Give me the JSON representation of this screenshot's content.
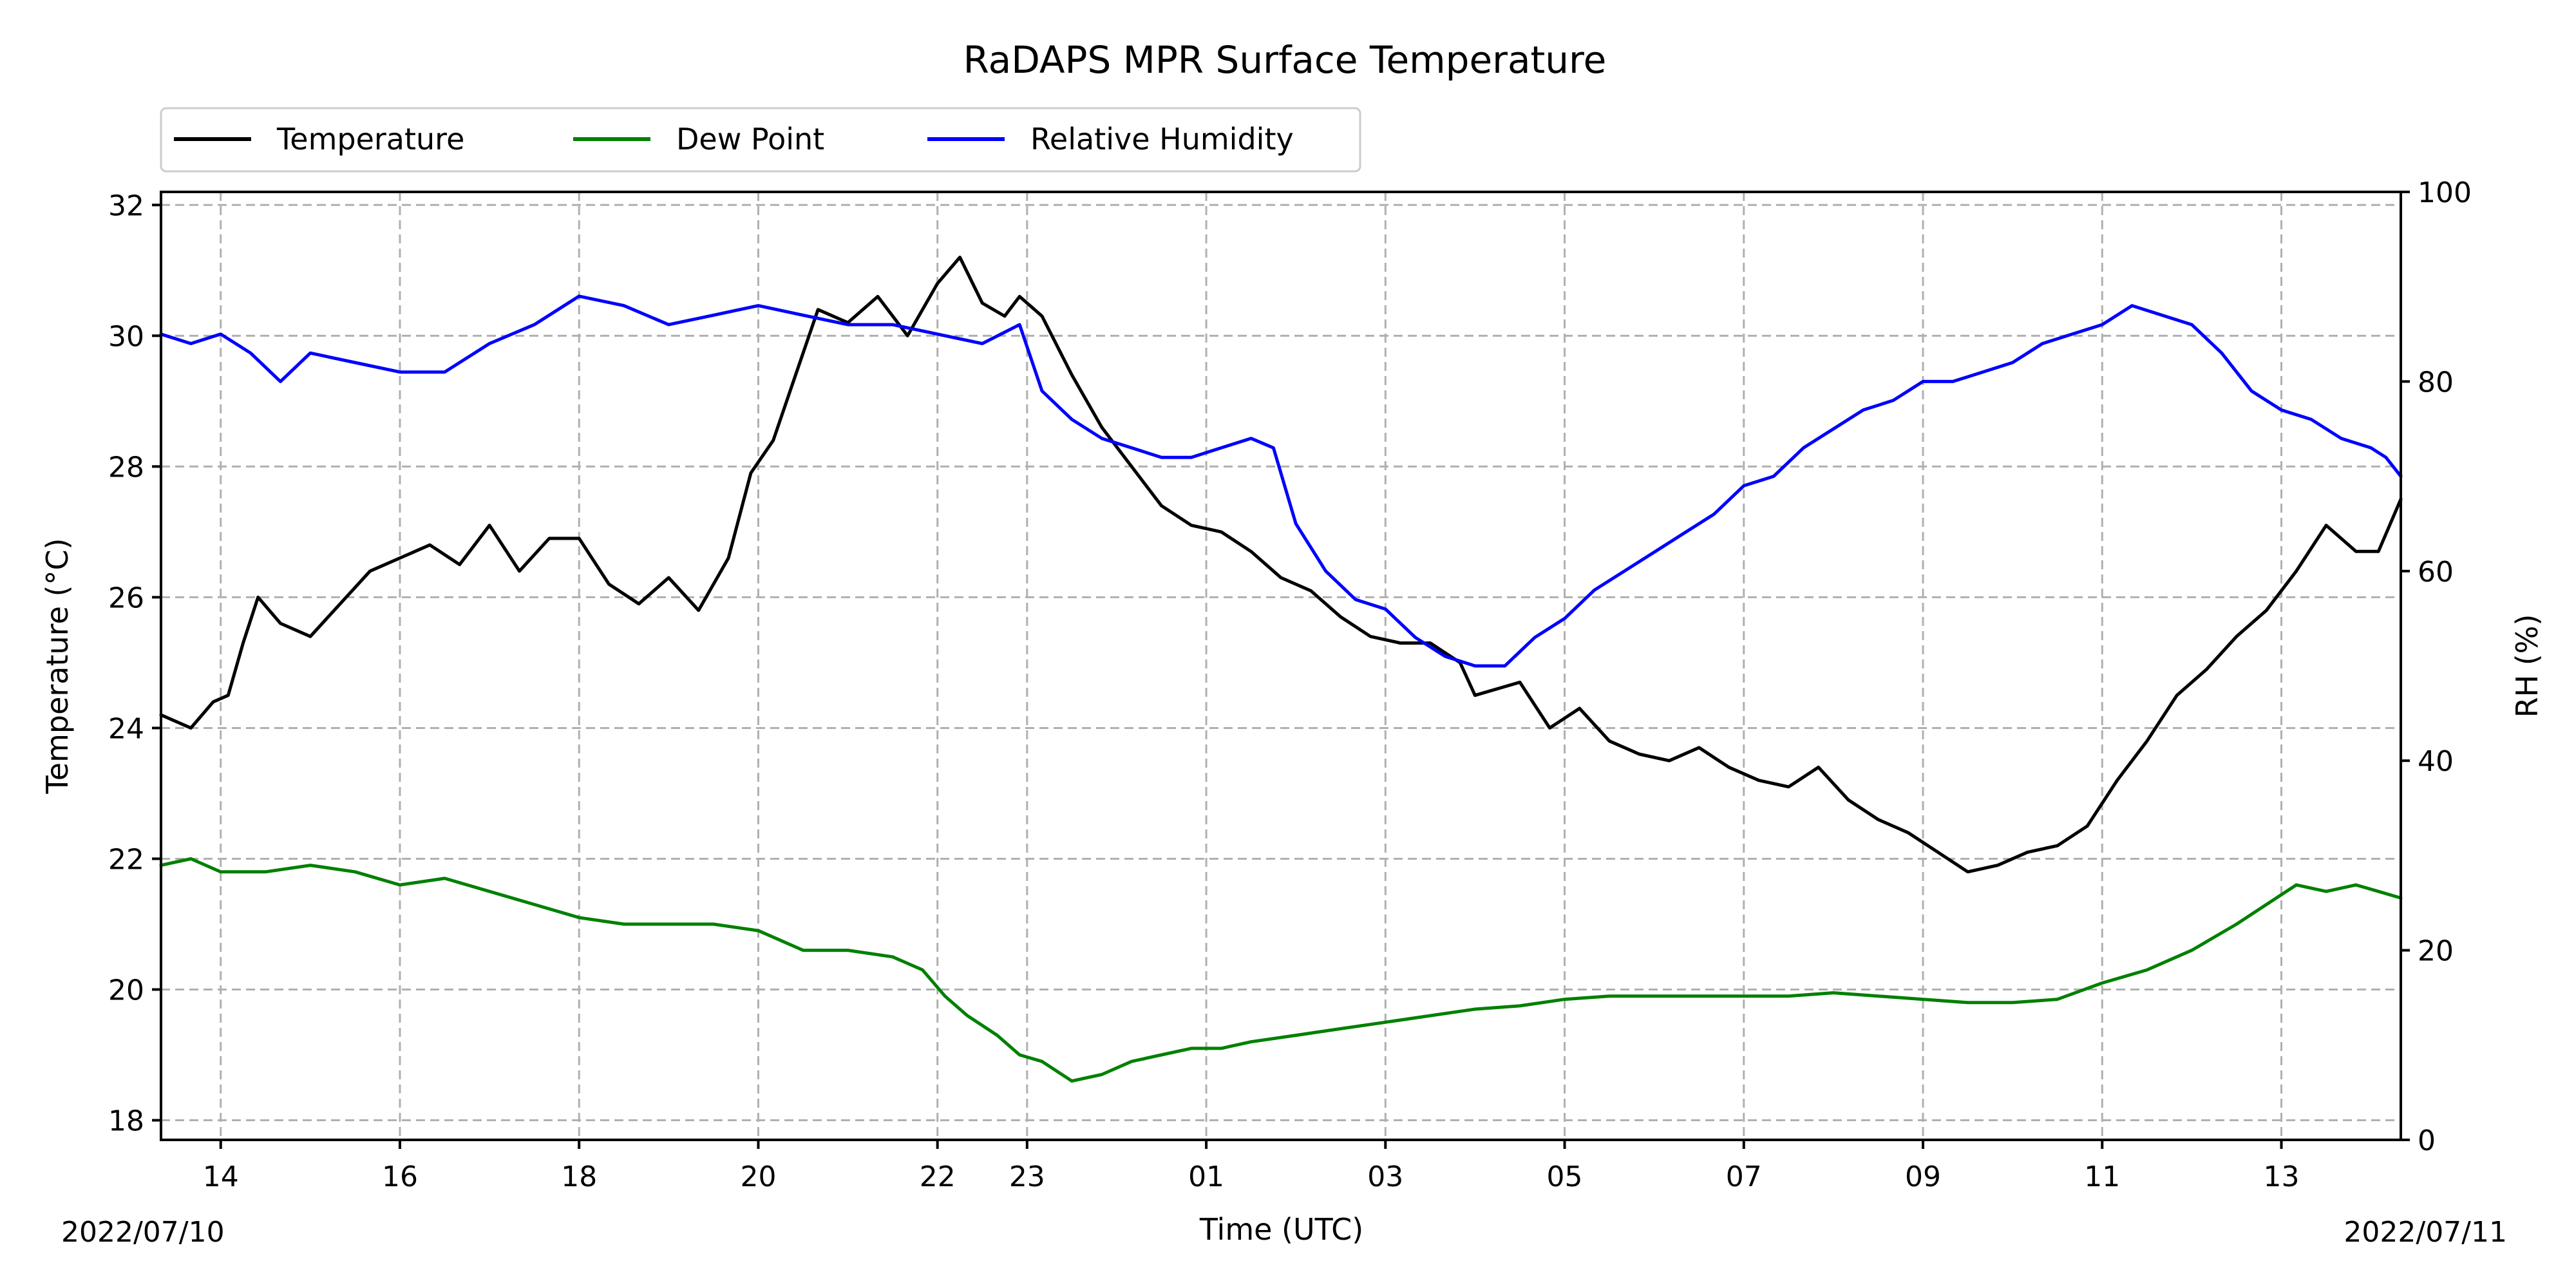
{
  "chart_data": {
    "type": "line",
    "title": "RaDAPS MPR Surface Temperature",
    "xlabel": "Time (UTC)",
    "ylabel": "Temperature ($^\\circ$C)",
    "ylabel_display": "Temperature (°C)",
    "y2label": "RH (%)",
    "date_start": "2022/07/10",
    "date_end": "2022/07/11",
    "x_range": [
      "2022-07-10T13:20",
      "2022-07-11T14:20"
    ],
    "x_ticks": [
      {
        "time": "2022-07-10T14:00",
        "label": "14"
      },
      {
        "time": "2022-07-10T16:00",
        "label": "16"
      },
      {
        "time": "2022-07-10T18:00",
        "label": "18"
      },
      {
        "time": "2022-07-10T20:00",
        "label": "20"
      },
      {
        "time": "2022-07-10T22:00",
        "label": "22"
      },
      {
        "time": "2022-07-10T23:00",
        "label": "23"
      },
      {
        "time": "2022-07-11T01:00",
        "label": "01"
      },
      {
        "time": "2022-07-11T03:00",
        "label": "03"
      },
      {
        "time": "2022-07-11T05:00",
        "label": "05"
      },
      {
        "time": "2022-07-11T07:00",
        "label": "07"
      },
      {
        "time": "2022-07-11T09:00",
        "label": "09"
      },
      {
        "time": "2022-07-11T11:00",
        "label": "11"
      },
      {
        "time": "2022-07-11T13:00",
        "label": "13"
      }
    ],
    "ylim": [
      17.7,
      32.2
    ],
    "y_ticks": [
      18,
      20,
      22,
      24,
      26,
      28,
      30,
      32
    ],
    "y2lim": [
      0,
      100
    ],
    "y2_ticks": [
      0,
      20,
      40,
      60,
      80,
      100
    ],
    "grid": true,
    "legend_position": "above-left",
    "series": [
      {
        "name": "Temperature",
        "axis": "left",
        "color": "#000000",
        "points": [
          [
            "2022-07-10T13:20",
            24.2
          ],
          [
            "2022-07-10T13:40",
            24.0
          ],
          [
            "2022-07-10T13:55",
            24.4
          ],
          [
            "2022-07-10T14:05",
            24.5
          ],
          [
            "2022-07-10T14:15",
            25.3
          ],
          [
            "2022-07-10T14:25",
            26.0
          ],
          [
            "2022-07-10T14:40",
            25.6
          ],
          [
            "2022-07-10T15:00",
            25.4
          ],
          [
            "2022-07-10T15:20",
            25.9
          ],
          [
            "2022-07-10T15:40",
            26.4
          ],
          [
            "2022-07-10T16:00",
            26.6
          ],
          [
            "2022-07-10T16:20",
            26.8
          ],
          [
            "2022-07-10T16:40",
            26.5
          ],
          [
            "2022-07-10T17:00",
            27.1
          ],
          [
            "2022-07-10T17:20",
            26.4
          ],
          [
            "2022-07-10T17:40",
            26.9
          ],
          [
            "2022-07-10T18:00",
            26.9
          ],
          [
            "2022-07-10T18:20",
            26.2
          ],
          [
            "2022-07-10T18:40",
            25.9
          ],
          [
            "2022-07-10T19:00",
            26.3
          ],
          [
            "2022-07-10T19:20",
            25.8
          ],
          [
            "2022-07-10T19:40",
            26.6
          ],
          [
            "2022-07-10T19:55",
            27.9
          ],
          [
            "2022-07-10T20:10",
            28.4
          ],
          [
            "2022-07-10T20:25",
            29.4
          ],
          [
            "2022-07-10T20:40",
            30.4
          ],
          [
            "2022-07-10T21:00",
            30.2
          ],
          [
            "2022-07-10T21:20",
            30.6
          ],
          [
            "2022-07-10T21:40",
            30.0
          ],
          [
            "2022-07-10T22:00",
            30.8
          ],
          [
            "2022-07-10T22:15",
            31.2
          ],
          [
            "2022-07-10T22:30",
            30.5
          ],
          [
            "2022-07-10T22:45",
            30.3
          ],
          [
            "2022-07-10T22:55",
            30.6
          ],
          [
            "2022-07-10T23:10",
            30.3
          ],
          [
            "2022-07-10T23:30",
            29.4
          ],
          [
            "2022-07-10T23:50",
            28.6
          ],
          [
            "2022-07-11T00:10",
            28.0
          ],
          [
            "2022-07-11T00:30",
            27.4
          ],
          [
            "2022-07-11T00:50",
            27.1
          ],
          [
            "2022-07-11T01:10",
            27.0
          ],
          [
            "2022-07-11T01:30",
            26.7
          ],
          [
            "2022-07-11T01:50",
            26.3
          ],
          [
            "2022-07-11T02:10",
            26.1
          ],
          [
            "2022-07-11T02:30",
            25.7
          ],
          [
            "2022-07-11T02:50",
            25.4
          ],
          [
            "2022-07-11T03:10",
            25.3
          ],
          [
            "2022-07-11T03:30",
            25.3
          ],
          [
            "2022-07-11T03:50",
            25.0
          ],
          [
            "2022-07-11T04:00",
            24.5
          ],
          [
            "2022-07-11T04:30",
            24.7
          ],
          [
            "2022-07-11T04:50",
            24.0
          ],
          [
            "2022-07-11T05:10",
            24.3
          ],
          [
            "2022-07-11T05:30",
            23.8
          ],
          [
            "2022-07-11T05:50",
            23.6
          ],
          [
            "2022-07-11T06:10",
            23.5
          ],
          [
            "2022-07-11T06:30",
            23.7
          ],
          [
            "2022-07-11T06:50",
            23.4
          ],
          [
            "2022-07-11T07:10",
            23.2
          ],
          [
            "2022-07-11T07:30",
            23.1
          ],
          [
            "2022-07-11T07:50",
            23.4
          ],
          [
            "2022-07-11T08:10",
            22.9
          ],
          [
            "2022-07-11T08:30",
            22.6
          ],
          [
            "2022-07-11T08:50",
            22.4
          ],
          [
            "2022-07-11T09:10",
            22.1
          ],
          [
            "2022-07-11T09:30",
            21.8
          ],
          [
            "2022-07-11T09:50",
            21.9
          ],
          [
            "2022-07-11T10:10",
            22.1
          ],
          [
            "2022-07-11T10:30",
            22.2
          ],
          [
            "2022-07-11T10:50",
            22.5
          ],
          [
            "2022-07-11T11:10",
            23.2
          ],
          [
            "2022-07-11T11:30",
            23.8
          ],
          [
            "2022-07-11T11:50",
            24.5
          ],
          [
            "2022-07-11T12:10",
            24.9
          ],
          [
            "2022-07-11T12:30",
            25.4
          ],
          [
            "2022-07-11T12:50",
            25.8
          ],
          [
            "2022-07-11T13:10",
            26.4
          ],
          [
            "2022-07-11T13:30",
            27.1
          ],
          [
            "2022-07-11T13:50",
            26.7
          ],
          [
            "2022-07-11T14:05",
            26.7
          ],
          [
            "2022-07-11T14:20",
            27.5
          ]
        ]
      },
      {
        "name": "Dew Point",
        "axis": "left",
        "color": "#008000",
        "points": [
          [
            "2022-07-10T13:20",
            21.9
          ],
          [
            "2022-07-10T13:40",
            22.0
          ],
          [
            "2022-07-10T14:00",
            21.8
          ],
          [
            "2022-07-10T14:30",
            21.8
          ],
          [
            "2022-07-10T15:00",
            21.9
          ],
          [
            "2022-07-10T15:30",
            21.8
          ],
          [
            "2022-07-10T16:00",
            21.6
          ],
          [
            "2022-07-10T16:30",
            21.7
          ],
          [
            "2022-07-10T17:00",
            21.5
          ],
          [
            "2022-07-10T17:30",
            21.3
          ],
          [
            "2022-07-10T18:00",
            21.1
          ],
          [
            "2022-07-10T18:30",
            21.0
          ],
          [
            "2022-07-10T19:00",
            21.0
          ],
          [
            "2022-07-10T19:30",
            21.0
          ],
          [
            "2022-07-10T20:00",
            20.9
          ],
          [
            "2022-07-10T20:30",
            20.6
          ],
          [
            "2022-07-10T21:00",
            20.6
          ],
          [
            "2022-07-10T21:30",
            20.5
          ],
          [
            "2022-07-10T21:50",
            20.3
          ],
          [
            "2022-07-10T22:05",
            19.9
          ],
          [
            "2022-07-10T22:20",
            19.6
          ],
          [
            "2022-07-10T22:40",
            19.3
          ],
          [
            "2022-07-10T22:55",
            19.0
          ],
          [
            "2022-07-10T23:10",
            18.9
          ],
          [
            "2022-07-10T23:30",
            18.6
          ],
          [
            "2022-07-10T23:50",
            18.7
          ],
          [
            "2022-07-11T00:10",
            18.9
          ],
          [
            "2022-07-11T00:30",
            19.0
          ],
          [
            "2022-07-11T00:50",
            19.1
          ],
          [
            "2022-07-11T01:10",
            19.1
          ],
          [
            "2022-07-11T01:30",
            19.2
          ],
          [
            "2022-07-11T02:00",
            19.3
          ],
          [
            "2022-07-11T02:30",
            19.4
          ],
          [
            "2022-07-11T03:00",
            19.5
          ],
          [
            "2022-07-11T03:30",
            19.6
          ],
          [
            "2022-07-11T04:00",
            19.7
          ],
          [
            "2022-07-11T04:30",
            19.75
          ],
          [
            "2022-07-11T05:00",
            19.85
          ],
          [
            "2022-07-11T05:30",
            19.9
          ],
          [
            "2022-07-11T06:00",
            19.9
          ],
          [
            "2022-07-11T06:30",
            19.9
          ],
          [
            "2022-07-11T07:00",
            19.9
          ],
          [
            "2022-07-11T07:30",
            19.9
          ],
          [
            "2022-07-11T08:00",
            19.95
          ],
          [
            "2022-07-11T08:30",
            19.9
          ],
          [
            "2022-07-11T09:00",
            19.85
          ],
          [
            "2022-07-11T09:30",
            19.8
          ],
          [
            "2022-07-11T10:00",
            19.8
          ],
          [
            "2022-07-11T10:30",
            19.85
          ],
          [
            "2022-07-11T11:00",
            20.1
          ],
          [
            "2022-07-11T11:30",
            20.3
          ],
          [
            "2022-07-11T12:00",
            20.6
          ],
          [
            "2022-07-11T12:30",
            21.0
          ],
          [
            "2022-07-11T12:50",
            21.3
          ],
          [
            "2022-07-11T13:10",
            21.6
          ],
          [
            "2022-07-11T13:30",
            21.5
          ],
          [
            "2022-07-11T13:50",
            21.6
          ],
          [
            "2022-07-11T14:05",
            21.5
          ],
          [
            "2022-07-11T14:20",
            21.4
          ]
        ]
      },
      {
        "name": "Relative Humidity",
        "axis": "right",
        "color": "#0000ff",
        "points": [
          [
            "2022-07-10T13:20",
            85
          ],
          [
            "2022-07-10T13:40",
            84
          ],
          [
            "2022-07-10T14:00",
            85
          ],
          [
            "2022-07-10T14:20",
            83
          ],
          [
            "2022-07-10T14:40",
            80
          ],
          [
            "2022-07-10T15:00",
            83
          ],
          [
            "2022-07-10T15:30",
            82
          ],
          [
            "2022-07-10T16:00",
            81
          ],
          [
            "2022-07-10T16:30",
            81
          ],
          [
            "2022-07-10T17:00",
            84
          ],
          [
            "2022-07-10T17:30",
            86
          ],
          [
            "2022-07-10T18:00",
            89
          ],
          [
            "2022-07-10T18:30",
            88
          ],
          [
            "2022-07-10T19:00",
            86
          ],
          [
            "2022-07-10T19:30",
            87
          ],
          [
            "2022-07-10T20:00",
            88
          ],
          [
            "2022-07-10T20:30",
            87
          ],
          [
            "2022-07-10T21:00",
            86
          ],
          [
            "2022-07-10T21:30",
            86
          ],
          [
            "2022-07-10T22:00",
            85
          ],
          [
            "2022-07-10T22:30",
            84
          ],
          [
            "2022-07-10T22:55",
            86
          ],
          [
            "2022-07-10T23:10",
            79
          ],
          [
            "2022-07-10T23:30",
            76
          ],
          [
            "2022-07-10T23:50",
            74
          ],
          [
            "2022-07-11T00:10",
            73
          ],
          [
            "2022-07-11T00:30",
            72
          ],
          [
            "2022-07-11T00:50",
            72
          ],
          [
            "2022-07-11T01:10",
            73
          ],
          [
            "2022-07-11T01:30",
            74
          ],
          [
            "2022-07-11T01:45",
            73
          ],
          [
            "2022-07-11T02:00",
            65
          ],
          [
            "2022-07-11T02:20",
            60
          ],
          [
            "2022-07-11T02:40",
            57
          ],
          [
            "2022-07-11T03:00",
            56
          ],
          [
            "2022-07-11T03:20",
            53
          ],
          [
            "2022-07-11T03:40",
            51
          ],
          [
            "2022-07-11T04:00",
            50
          ],
          [
            "2022-07-11T04:20",
            50
          ],
          [
            "2022-07-11T04:40",
            53
          ],
          [
            "2022-07-11T05:00",
            55
          ],
          [
            "2022-07-11T05:20",
            58
          ],
          [
            "2022-07-11T05:40",
            60
          ],
          [
            "2022-07-11T06:00",
            62
          ],
          [
            "2022-07-11T06:20",
            64
          ],
          [
            "2022-07-11T06:40",
            66
          ],
          [
            "2022-07-11T07:00",
            69
          ],
          [
            "2022-07-11T07:20",
            70
          ],
          [
            "2022-07-11T07:40",
            73
          ],
          [
            "2022-07-11T08:00",
            75
          ],
          [
            "2022-07-11T08:20",
            77
          ],
          [
            "2022-07-11T08:40",
            78
          ],
          [
            "2022-07-11T09:00",
            80
          ],
          [
            "2022-07-11T09:20",
            80
          ],
          [
            "2022-07-11T09:40",
            81
          ],
          [
            "2022-07-11T10:00",
            82
          ],
          [
            "2022-07-11T10:20",
            84
          ],
          [
            "2022-07-11T10:40",
            85
          ],
          [
            "2022-07-11T11:00",
            86
          ],
          [
            "2022-07-11T11:20",
            88
          ],
          [
            "2022-07-11T11:40",
            87
          ],
          [
            "2022-07-11T12:00",
            86
          ],
          [
            "2022-07-11T12:20",
            83
          ],
          [
            "2022-07-11T12:40",
            79
          ],
          [
            "2022-07-11T13:00",
            77
          ],
          [
            "2022-07-11T13:20",
            76
          ],
          [
            "2022-07-11T13:40",
            74
          ],
          [
            "2022-07-11T14:00",
            73
          ],
          [
            "2022-07-11T14:10",
            72
          ],
          [
            "2022-07-11T14:20",
            70
          ]
        ]
      }
    ]
  }
}
